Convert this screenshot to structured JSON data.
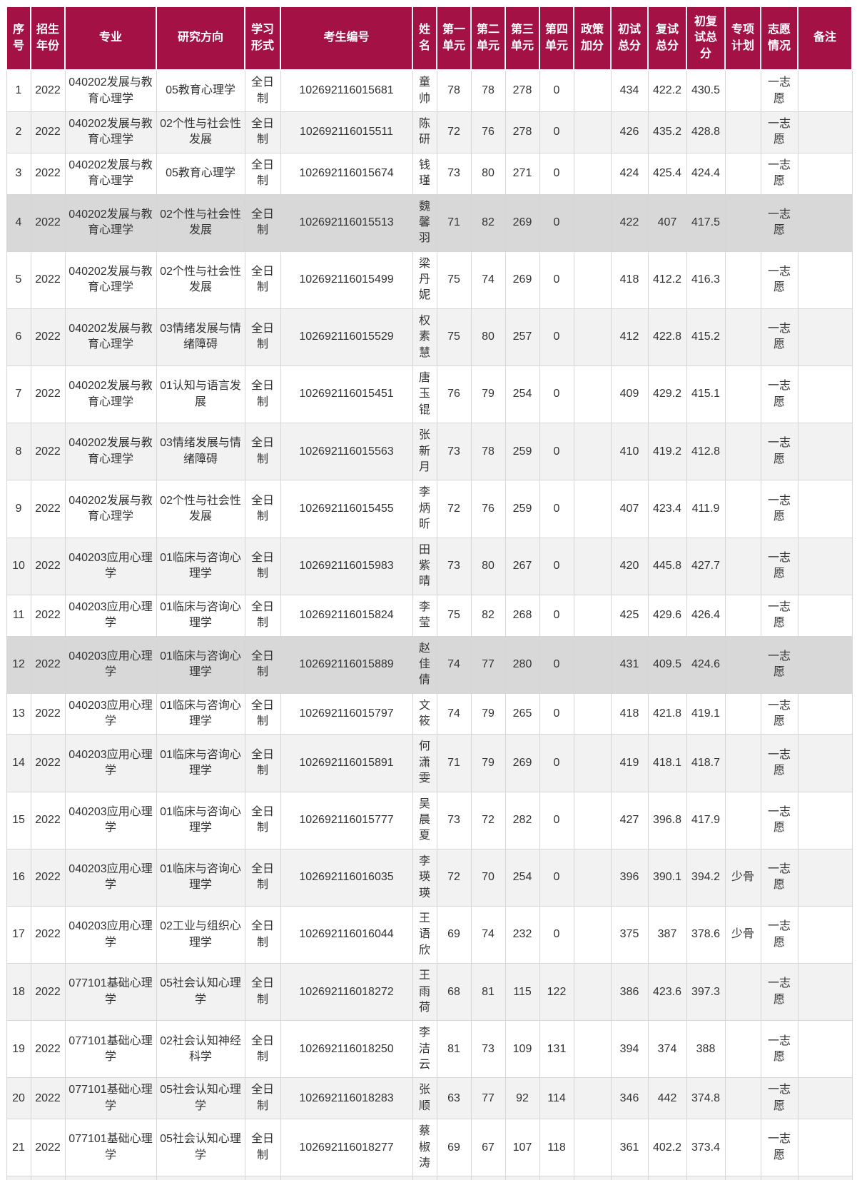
{
  "colors": {
    "header_bg": "#a41245",
    "header_text": "#ffffff",
    "row_stripe": "#f2f2f2",
    "row_highlight": "#d8d8d8",
    "body_text": "#333333",
    "grid_line": "#d6d6d6"
  },
  "table": {
    "columns": [
      {
        "key": "no",
        "label": "序号"
      },
      {
        "key": "year",
        "label": "招生年份"
      },
      {
        "key": "major",
        "label": "专业"
      },
      {
        "key": "direction",
        "label": "研究方向"
      },
      {
        "key": "mode",
        "label": "学习形式"
      },
      {
        "key": "candidate_no",
        "label": "考生编号"
      },
      {
        "key": "name",
        "label": "姓名"
      },
      {
        "key": "unit1",
        "label": "第一单元"
      },
      {
        "key": "unit2",
        "label": "第二单元"
      },
      {
        "key": "unit3",
        "label": "第三单元"
      },
      {
        "key": "unit4",
        "label": "第四单元"
      },
      {
        "key": "policy_bonus",
        "label": "政策加分"
      },
      {
        "key": "initial_total",
        "label": "初试总分"
      },
      {
        "key": "retest_total",
        "label": "复试总分"
      },
      {
        "key": "combined_total",
        "label": "初复试总分"
      },
      {
        "key": "special_plan",
        "label": "专项计划"
      },
      {
        "key": "volunteer",
        "label": "志愿情况"
      },
      {
        "key": "remark",
        "label": "备注"
      }
    ],
    "rows": [
      {
        "no": "1",
        "year": "2022",
        "major": "040202发展与教育心理学",
        "direction": "05教育心理学",
        "mode": "全日制",
        "candidate_no": "102692116015681",
        "name": "童帅",
        "unit1": "78",
        "unit2": "78",
        "unit3": "278",
        "unit4": "0",
        "policy_bonus": "",
        "initial_total": "434",
        "retest_total": "422.2",
        "combined_total": "430.5",
        "special_plan": "",
        "volunteer": "一志愿",
        "remark": ""
      },
      {
        "no": "2",
        "year": "2022",
        "major": "040202发展与教育心理学",
        "direction": "02个性与社会性发展",
        "mode": "全日制",
        "candidate_no": "102692116015511",
        "name": "陈研",
        "unit1": "72",
        "unit2": "76",
        "un3": "",
        "unit3": "278",
        "unit4": "0",
        "policy_bonus": "",
        "initial_total": "426",
        "retest_total": "435.2",
        "combined_total": "428.8",
        "special_plan": "",
        "volunteer": "一志愿",
        "remark": ""
      },
      {
        "no": "3",
        "year": "2022",
        "major": "040202发展与教育心理学",
        "direction": "05教育心理学",
        "mode": "全日制",
        "candidate_no": "102692116015674",
        "name": "钱瑾",
        "unit1": "73",
        "unit2": "80",
        "unit3": "271",
        "unit4": "0",
        "policy_bonus": "",
        "initial_total": "424",
        "retest_total": "425.4",
        "combined_total": "424.4",
        "special_plan": "",
        "volunteer": "一志愿",
        "remark": ""
      },
      {
        "no": "4",
        "year": "2022",
        "major": "040202发展与教育心理学",
        "direction": "02个性与社会性发展",
        "mode": "全日制",
        "candidate_no": "102692116015513",
        "name": "魏馨羽",
        "unit1": "71",
        "unit2": "82",
        "unit3": "269",
        "unit4": "0",
        "policy_bonus": "",
        "initial_total": "422",
        "retest_total": "407",
        "combined_total": "417.5",
        "special_plan": "",
        "volunteer": "一志愿",
        "remark": "",
        "highlighted": true
      },
      {
        "no": "5",
        "year": "2022",
        "major": "040202发展与教育心理学",
        "direction": "02个性与社会性发展",
        "mode": "全日制",
        "candidate_no": "102692116015499",
        "name": "梁丹妮",
        "unit1": "75",
        "unit2": "74",
        "unit3": "269",
        "unit4": "0",
        "policy_bonus": "",
        "initial_total": "418",
        "retest_total": "412.2",
        "combined_total": "416.3",
        "special_plan": "",
        "volunteer": "一志愿",
        "remark": ""
      },
      {
        "no": "6",
        "year": "2022",
        "major": "040202发展与教育心理学",
        "direction": "03情绪发展与情绪障碍",
        "mode": "全日制",
        "candidate_no": "102692116015529",
        "name": "权素慧",
        "unit1": "75",
        "unit2": "80",
        "unit3": "257",
        "unit4": "0",
        "policy_bonus": "",
        "initial_total": "412",
        "retest_total": "422.8",
        "combined_total": "415.2",
        "special_plan": "",
        "volunteer": "一志愿",
        "remark": ""
      },
      {
        "no": "7",
        "year": "2022",
        "major": "040202发展与教育心理学",
        "direction": "01认知与语言发展",
        "mode": "全日制",
        "candidate_no": "102692116015451",
        "name": "唐玉锟",
        "unit1": "76",
        "unit2": "79",
        "unit3": "254",
        "unit4": "0",
        "policy_bonus": "",
        "initial_total": "409",
        "retest_total": "429.2",
        "combined_total": "415.1",
        "special_plan": "",
        "volunteer": "一志愿",
        "remark": ""
      },
      {
        "no": "8",
        "year": "2022",
        "major": "040202发展与教育心理学",
        "direction": "03情绪发展与情绪障碍",
        "mode": "全日制",
        "candidate_no": "102692116015563",
        "name": "张新月",
        "unit1": "73",
        "unit2": "78",
        "unit3": "259",
        "unit4": "0",
        "policy_bonus": "",
        "initial_total": "410",
        "retest_total": "419.2",
        "combined_total": "412.8",
        "special_plan": "",
        "volunteer": "一志愿",
        "remark": ""
      },
      {
        "no": "9",
        "year": "2022",
        "major": "040202发展与教育心理学",
        "direction": "02个性与社会性发展",
        "mode": "全日制",
        "candidate_no": "102692116015455",
        "name": "李炳昕",
        "unit1": "72",
        "unit2": "76",
        "unit3": "259",
        "unit4": "0",
        "policy_bonus": "",
        "initial_total": "407",
        "retest_total": "423.4",
        "combined_total": "411.9",
        "special_plan": "",
        "volunteer": "一志愿",
        "remark": ""
      },
      {
        "no": "10",
        "year": "2022",
        "major": "040203应用心理学",
        "direction": "01临床与咨询心理学",
        "mode": "全日制",
        "candidate_no": "102692116015983",
        "name": "田紫晴",
        "unit1": "73",
        "unit2": "80",
        "unit3": "267",
        "unit4": "0",
        "policy_bonus": "",
        "initial_total": "420",
        "retest_total": "445.8",
        "combined_total": "427.7",
        "special_plan": "",
        "volunteer": "一志愿",
        "remark": ""
      },
      {
        "no": "11",
        "year": "2022",
        "major": "040203应用心理学",
        "direction": "01临床与咨询心理学",
        "mode": "全日制",
        "candidate_no": "102692116015824",
        "name": "李莹",
        "unit1": "75",
        "unit2": "82",
        "unit3": "268",
        "unit4": "0",
        "policy_bonus": "",
        "initial_total": "425",
        "retest_total": "429.6",
        "combined_total": "426.4",
        "special_plan": "",
        "volunteer": "一志愿",
        "remark": ""
      },
      {
        "no": "12",
        "year": "2022",
        "major": "040203应用心理学",
        "direction": "01临床与咨询心理学",
        "mode": "全日制",
        "candidate_no": "102692116015889",
        "name": "赵佳倩",
        "unit1": "74",
        "unit2": "77",
        "unit3": "280",
        "unit4": "0",
        "policy_bonus": "",
        "initial_total": "431",
        "retest_total": "409.5",
        "combined_total": "424.6",
        "special_plan": "",
        "volunteer": "一志愿",
        "remark": "",
        "highlighted": true
      },
      {
        "no": "13",
        "year": "2022",
        "major": "040203应用心理学",
        "direction": "01临床与咨询心理学",
        "mode": "全日制",
        "candidate_no": "102692116015797",
        "name": "文筱",
        "unit1": "74",
        "unit2": "79",
        "unit3": "265",
        "unit4": "0",
        "policy_bonus": "",
        "initial_total": "418",
        "retest_total": "421.8",
        "combined_total": "419.1",
        "special_plan": "",
        "volunteer": "一志愿",
        "remark": ""
      },
      {
        "no": "14",
        "year": "2022",
        "major": "040203应用心理学",
        "direction": "01临床与咨询心理学",
        "mode": "全日制",
        "candidate_no": "102692116015891",
        "name": "何潇雯",
        "unit1": "71",
        "unit2": "79",
        "unit3": "269",
        "unit4": "0",
        "policy_bonus": "",
        "initial_total": "419",
        "retest_total": "418.1",
        "combined_total": "418.7",
        "special_plan": "",
        "volunteer": "一志愿",
        "remark": ""
      },
      {
        "no": "15",
        "year": "2022",
        "major": "040203应用心理学",
        "direction": "01临床与咨询心理学",
        "mode": "全日制",
        "candidate_no": "102692116015777",
        "name": "吴晨夏",
        "unit1": "73",
        "unit2": "72",
        "unit3": "282",
        "unit4": "0",
        "policy_bonus": "",
        "initial_total": "427",
        "retest_total": "396.8",
        "combined_total": "417.9",
        "special_plan": "",
        "volunteer": "一志愿",
        "remark": ""
      },
      {
        "no": "16",
        "year": "2022",
        "major": "040203应用心理学",
        "direction": "01临床与咨询心理学",
        "mode": "全日制",
        "candidate_no": "102692116016035",
        "name": "李瑛瑛",
        "unit1": "72",
        "unit2": "70",
        "unit3": "254",
        "unit4": "0",
        "policy_bonus": "",
        "initial_total": "396",
        "retest_total": "390.1",
        "combined_total": "394.2",
        "special_plan": "少骨",
        "volunteer": "一志愿",
        "remark": ""
      },
      {
        "no": "17",
        "year": "2022",
        "major": "040203应用心理学",
        "direction": "02工业与组织心理学",
        "mode": "全日制",
        "candidate_no": "102692116016044",
        "name": "王语欣",
        "unit1": "69",
        "unit2": "74",
        "unit3": "232",
        "unit4": "0",
        "policy_bonus": "",
        "initial_total": "375",
        "retest_total": "387",
        "combined_total": "378.6",
        "special_plan": "少骨",
        "volunteer": "一志愿",
        "remark": ""
      },
      {
        "no": "18",
        "year": "2022",
        "major": "077101基础心理学",
        "direction": "05社会认知心理学",
        "mode": "全日制",
        "candidate_no": "102692116018272",
        "name": "王雨荷",
        "unit1": "68",
        "unit2": "81",
        "unit3": "115",
        "unit4": "122",
        "policy_bonus": "",
        "initial_total": "386",
        "retest_total": "423.6",
        "combined_total": "397.3",
        "special_plan": "",
        "volunteer": "一志愿",
        "remark": ""
      },
      {
        "no": "19",
        "year": "2022",
        "major": "077101基础心理学",
        "direction": "02社会认知神经科学",
        "mode": "全日制",
        "candidate_no": "102692116018250",
        "name": "李洁云",
        "unit1": "81",
        "unit2": "73",
        "unit3": "109",
        "unit4": "131",
        "policy_bonus": "",
        "initial_total": "394",
        "retest_total": "374",
        "combined_total": "388",
        "special_plan": "",
        "volunteer": "一志愿",
        "remark": ""
      },
      {
        "no": "20",
        "year": "2022",
        "major": "077101基础心理学",
        "direction": "05社会认知心理学",
        "mode": "全日制",
        "candidate_no": "102692116018283",
        "name": "张顺",
        "unit1": "63",
        "unit2": "77",
        "unit3": "92",
        "unit4": "114",
        "policy_bonus": "",
        "initial_total": "346",
        "retest_total": "442",
        "combined_total": "374.8",
        "special_plan": "",
        "volunteer": "一志愿",
        "remark": ""
      },
      {
        "no": "21",
        "year": "2022",
        "major": "077101基础心理学",
        "direction": "05社会认知心理学",
        "mode": "全日制",
        "candidate_no": "102692116018277",
        "name": "蔡椒涛",
        "unit1": "69",
        "unit2": "67",
        "unit3": "107",
        "unit4": "118",
        "policy_bonus": "",
        "initial_total": "361",
        "retest_total": "402.2",
        "combined_total": "373.4",
        "special_plan": "",
        "volunteer": "一志愿",
        "remark": ""
      },
      {
        "no": "",
        "year": "",
        "major": "",
        "direction": "",
        "mode": "",
        "candidate_no": "",
        "name": "",
        "unit1": "",
        "unit2": "",
        "unit3": "",
        "unit4": "",
        "policy_bonus": "",
        "initial_total": "",
        "retest_total": "",
        "combined_total": "",
        "special_plan": "",
        "volunteer": "",
        "remark": ""
      }
    ]
  }
}
